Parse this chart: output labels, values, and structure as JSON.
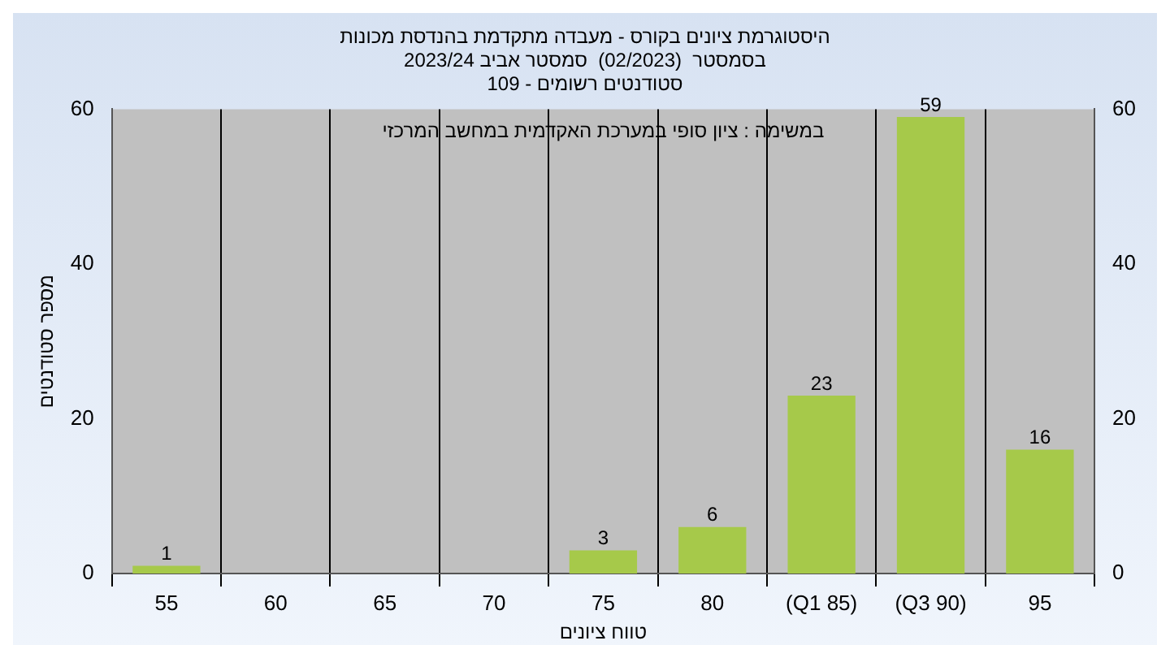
{
  "chart_data": {
    "type": "bar",
    "title": [
      "היסטוגרמת ציונים בקורס - מעבדה מתקדמת בהנדסת מכונות",
      "בסמסטר  (02/2023)  סמסטר אביב 2023/24",
      "סטודנטים רשומים - 109"
    ],
    "xlabel": "טווח ציונים",
    "ylabel": "מספר סטודנטים",
    "annotations": [
      "במשימה : ציון סופי במערכת האקדמית במחשב המרכזי"
    ],
    "categories": [
      "55",
      "60",
      "65",
      "70",
      "75",
      "80",
      "(Q1 85)",
      "(Q3 90)",
      "95"
    ],
    "values": [
      1,
      0,
      0,
      0,
      3,
      6,
      23,
      59,
      16
    ],
    "value_labels": [
      "1",
      null,
      null,
      null,
      "3",
      "6",
      "23",
      "59",
      "16"
    ],
    "color": "#a6c94a",
    "ylim": [
      0,
      60
    ],
    "yticks": [
      0,
      20,
      40,
      60
    ],
    "y2lim": [
      0,
      60
    ],
    "y2ticks": [
      0,
      20,
      40,
      60
    ],
    "grid": "x",
    "legend": false
  }
}
